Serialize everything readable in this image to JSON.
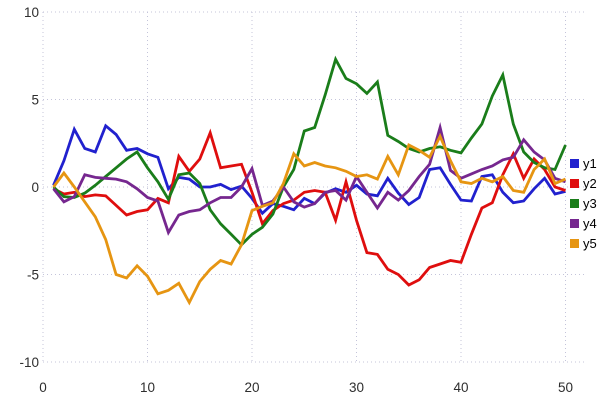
{
  "chart_data": {
    "type": "line",
    "title": "",
    "xlabel": "",
    "ylabel": "",
    "xlim": [
      0,
      51.8
    ],
    "ylim": [
      -10,
      10
    ],
    "x_ticks": [
      0,
      10,
      20,
      30,
      40,
      50
    ],
    "y_ticks": [
      -10,
      -5,
      0,
      5,
      10
    ],
    "grid": true,
    "grid_style": "dotted",
    "legend_position": "right",
    "x": [
      1,
      2,
      3,
      4,
      5,
      6,
      7,
      8,
      9,
      10,
      11,
      12,
      13,
      14,
      15,
      16,
      17,
      18,
      19,
      20,
      21,
      22,
      23,
      24,
      25,
      26,
      27,
      28,
      29,
      30,
      31,
      32,
      33,
      34,
      35,
      36,
      37,
      38,
      39,
      40,
      41,
      42,
      43,
      44,
      45,
      46,
      47,
      48,
      49,
      50
    ],
    "series": [
      {
        "name": "y1",
        "color": "#2121CE",
        "values": [
          0.1,
          1.5,
          3.3,
          2.2,
          2.0,
          3.5,
          3.0,
          2.1,
          2.2,
          1.9,
          1.7,
          -0.1,
          0.55,
          0.45,
          0.0,
          0.0,
          0.15,
          -0.15,
          0.05,
          -0.65,
          -1.5,
          -0.95,
          -1.1,
          -1.3,
          -0.65,
          -0.95,
          -0.35,
          -0.1,
          -0.3,
          0.1,
          -0.4,
          -0.5,
          0.5,
          -0.35,
          -1.0,
          -0.6,
          1.0,
          1.1,
          0.15,
          -0.75,
          -0.8,
          0.6,
          0.7,
          -0.3,
          -0.9,
          -0.8,
          -0.1,
          0.5,
          -0.4,
          -0.25
        ]
      },
      {
        "name": "y2",
        "color": "#DF0E0E",
        "values": [
          -0.1,
          -0.4,
          -0.3,
          -0.55,
          -0.45,
          -0.5,
          -1.05,
          -1.6,
          -1.4,
          -1.3,
          -0.65,
          -0.9,
          1.75,
          0.9,
          1.6,
          3.1,
          1.1,
          1.2,
          1.3,
          -0.3,
          -2.1,
          -1.35,
          -0.95,
          -0.75,
          -0.3,
          -0.2,
          -0.3,
          -1.9,
          0.3,
          -1.9,
          -3.75,
          -3.85,
          -4.7,
          -5.0,
          -5.6,
          -5.3,
          -4.6,
          -4.4,
          -4.2,
          -4.3,
          -2.7,
          -1.2,
          -0.9,
          0.7,
          1.9,
          0.5,
          1.6,
          1.0,
          0.0,
          -0.2
        ]
      },
      {
        "name": "y3",
        "color": "#1A7D1A",
        "values": [
          0.0,
          -0.55,
          -0.6,
          -0.35,
          0.1,
          0.6,
          1.1,
          1.6,
          2.0,
          1.1,
          0.3,
          -0.7,
          0.7,
          0.8,
          0.2,
          -1.3,
          -2.1,
          -2.7,
          -3.3,
          -2.7,
          -2.3,
          -1.55,
          0.0,
          1.0,
          3.2,
          3.4,
          5.25,
          7.3,
          6.2,
          5.9,
          5.35,
          6.0,
          2.95,
          2.6,
          2.2,
          2.0,
          2.2,
          2.3,
          2.1,
          1.95,
          2.8,
          3.6,
          5.2,
          6.4,
          3.6,
          2.0,
          1.4,
          1.1,
          1.0,
          2.4
        ]
      },
      {
        "name": "y4",
        "color": "#76278F",
        "values": [
          -0.1,
          -0.85,
          -0.55,
          0.7,
          0.55,
          0.5,
          0.45,
          0.3,
          -0.1,
          -0.6,
          -0.8,
          -2.6,
          -1.6,
          -1.4,
          -1.3,
          -0.9,
          -0.6,
          -0.6,
          0.0,
          1.05,
          -1.05,
          -0.8,
          0.0,
          -0.85,
          -1.15,
          -0.95,
          -0.3,
          -0.2,
          -0.75,
          0.6,
          -0.3,
          -1.2,
          -0.3,
          -0.75,
          -0.2,
          0.6,
          1.3,
          3.4,
          0.95,
          0.5,
          0.75,
          1.0,
          1.2,
          1.55,
          1.7,
          2.7,
          2.0,
          1.55,
          0.5,
          0.3
        ]
      },
      {
        "name": "y5",
        "color": "#E69512",
        "values": [
          0.0,
          0.8,
          0.0,
          -0.85,
          -1.7,
          -3.0,
          -5.0,
          -5.2,
          -4.5,
          -5.1,
          -6.1,
          -5.9,
          -5.5,
          -6.6,
          -5.4,
          -4.7,
          -4.2,
          -4.4,
          -3.3,
          -1.35,
          -1.1,
          -0.9,
          0.2,
          1.9,
          1.2,
          1.4,
          1.2,
          1.1,
          0.9,
          0.6,
          0.7,
          0.45,
          1.75,
          0.7,
          2.4,
          2.1,
          1.7,
          2.9,
          1.5,
          0.3,
          0.2,
          0.5,
          0.3,
          0.6,
          -0.2,
          -0.3,
          1.0,
          1.6,
          0.2,
          0.45
        ]
      }
    ]
  },
  "style": {
    "background": "#ffffff",
    "grid_color": "#c4c4da",
    "tick_label_color": "#2e2e2e",
    "line_width": 2.8
  }
}
